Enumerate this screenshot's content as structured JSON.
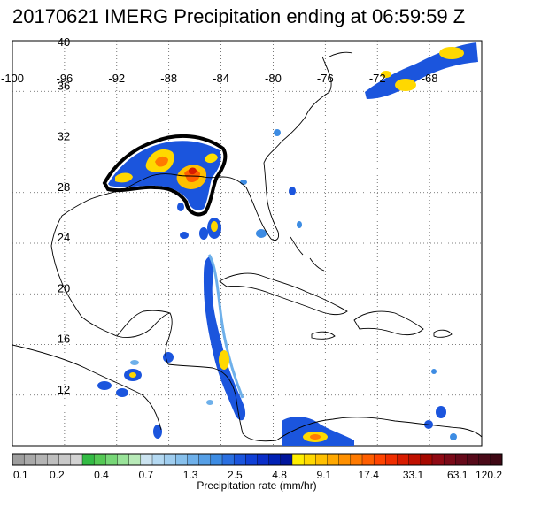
{
  "title": "20170621 IMERG Precipitation ending at 06:59:59 Z",
  "map": {
    "lon_range": [
      -100,
      -64
    ],
    "lat_range": [
      8,
      40
    ],
    "lon_ticks": [
      "-100",
      "-96",
      "-92",
      "-88",
      "-84",
      "-80",
      "-76",
      "-72",
      "-68"
    ],
    "lat_ticks": [
      "40",
      "36",
      "32",
      "28",
      "24",
      "20",
      "16",
      "12"
    ],
    "grid": true,
    "grid_style": "dotted"
  },
  "colorbar": {
    "title": "Precipitation rate (mm/hr)",
    "labels": [
      "0.1",
      "0.2",
      "0.4",
      "0.7",
      "1.3",
      "2.5",
      "4.8",
      "9.1",
      "17.4",
      "33.1",
      "63.1",
      "120.2"
    ],
    "colors": [
      "#9e9e9e",
      "#a9a9a9",
      "#b4b4b4",
      "#bfbfbf",
      "#c9c9c9",
      "#d3d3d3",
      "#33bb44",
      "#55c955",
      "#77d777",
      "#99e399",
      "#b8eab8",
      "#cbe3f0",
      "#b4d9f2",
      "#9fcdef",
      "#87c0ec",
      "#6eb0ea",
      "#569fe6",
      "#3d8ce3",
      "#2a6fe0",
      "#1b55dd",
      "#1040d6",
      "#0a2ec8",
      "#0020b4",
      "#00159c",
      "#ffee00",
      "#ffd800",
      "#ffc000",
      "#ffa800",
      "#ff9000",
      "#ff7a00",
      "#ff5e00",
      "#ff4400",
      "#f02e00",
      "#d81c00",
      "#c01000",
      "#a60800",
      "#900a14",
      "#7a0a18",
      "#660a1a",
      "#560a1a",
      "#4a0a18",
      "#3e0814"
    ]
  }
}
